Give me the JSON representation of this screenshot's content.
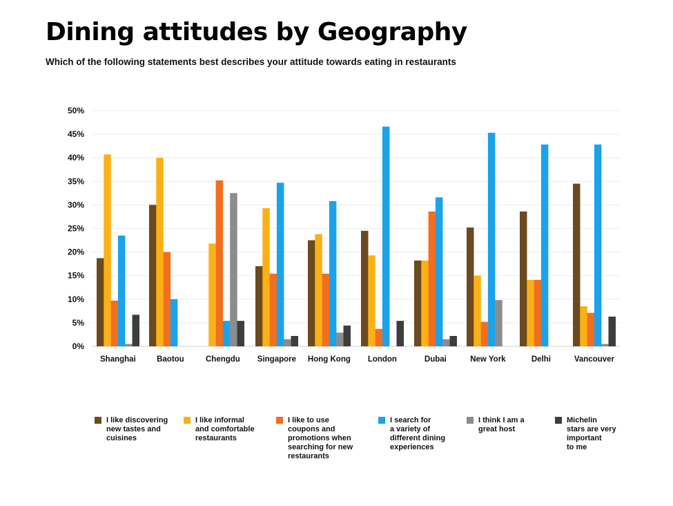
{
  "title": "Dining attitudes by Geography",
  "subtitle": "Which of the following statements best describes your attitude towards eating in restaurants",
  "chart_data": {
    "type": "bar",
    "title": "Dining attitudes by Geography",
    "subtitle": "Which of the following statements best describes your attitude towards eating in restaurants",
    "xlabel": "",
    "ylabel": "",
    "ylim": [
      0,
      50
    ],
    "yticks": [
      "0%",
      "5%",
      "10%",
      "15%",
      "20%",
      "25%",
      "30%",
      "35%",
      "40%",
      "45%",
      "50%"
    ],
    "grid": true,
    "legend_position": "bottom",
    "categories": [
      "Shanghai",
      "Baotou",
      "Chengdu",
      "Singapore",
      "Hong Kong",
      "London",
      "Dubai",
      "New York",
      "Delhi",
      "Vancouver"
    ],
    "series": [
      {
        "name": "I like discovering\nnew tastes and\ncuisines",
        "color": "#6b4a1f",
        "values": [
          18.7,
          30,
          null,
          17,
          22.5,
          24.5,
          18.2,
          25.2,
          28.6,
          34.5
        ]
      },
      {
        "name": "I like informal\nand comfortable\nrestaurants",
        "color": "#fbb116",
        "values": [
          40.7,
          40,
          21.8,
          29.3,
          23.8,
          19.3,
          18.2,
          15,
          14.1,
          8.5
        ]
      },
      {
        "name": "I like to use\ncoupons and\npromotions when\nsearching for new\nrestaurants",
        "color": "#f26f1f",
        "values": [
          9.7,
          20,
          35.2,
          15.4,
          15.4,
          3.7,
          28.6,
          5.2,
          14.1,
          7.1
        ]
      },
      {
        "name": "I search for\na variety of\ndifferent dining\nexperiences",
        "color": "#1aa3ea",
        "values": [
          23.5,
          10,
          5.4,
          34.7,
          30.8,
          46.6,
          31.6,
          45.3,
          42.8,
          42.8
        ]
      },
      {
        "name": "I think I am a\ngreat host",
        "color": "#8c8c8c",
        "values": [
          0.5,
          null,
          32.5,
          1.5,
          2.9,
          null,
          1.5,
          9.8,
          null,
          0.5
        ]
      },
      {
        "name": "Michelin\nstars are very\nimportant\nto me",
        "color": "#3d3d3d",
        "values": [
          6.7,
          null,
          5.4,
          2.2,
          4.4,
          5.4,
          2.2,
          null,
          null,
          6.3
        ]
      }
    ]
  }
}
